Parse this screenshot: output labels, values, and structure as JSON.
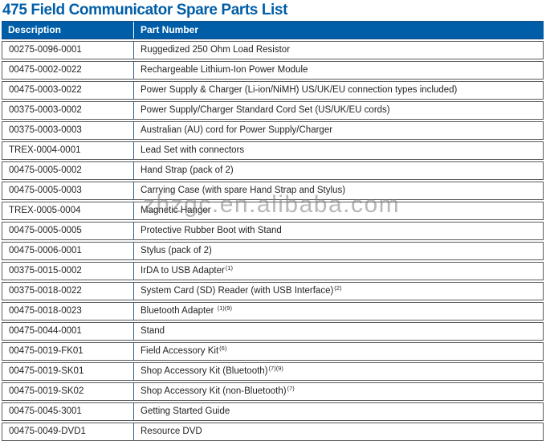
{
  "title": "475 Field Communicator Spare Parts List",
  "watermark": "zhzgc.en.alibaba.com",
  "colors": {
    "header_bg": "#005ea8",
    "title_text": "#005ea8",
    "row_border": "#5a5a5c",
    "column_divider": "#35618f",
    "body_text": "#231f20"
  },
  "table": {
    "columns": [
      "Description",
      "Part Number"
    ],
    "rows": [
      {
        "part": "00275-0096-0001",
        "desc": "Ruggedized 250 Ohm Load Resistor"
      },
      {
        "part": "00475-0002-0022",
        "desc": "Rechargeable Lithium-Ion Power Module"
      },
      {
        "part": "00475-0003-0022",
        "desc": "Power Supply & Charger (Li-ion/NiMH) US/UK/EU connection types included)"
      },
      {
        "part": "00375-0003-0002",
        "desc": "Power Supply/Charger Standard Cord Set (US/UK/EU cords)"
      },
      {
        "part": "00375-0003-0003",
        "desc": "Australian (AU) cord for Power Supply/Charger"
      },
      {
        "part": "TREX-0004-0001",
        "desc": "Lead Set with connectors"
      },
      {
        "part": "00475-0005-0002",
        "desc": "Hand Strap (pack of 2)"
      },
      {
        "part": "00475-0005-0003",
        "desc": "Carrying Case (with spare Hand Strap and Stylus)"
      },
      {
        "part": "TREX-0005-0004",
        "desc": "Magnetic Hanger"
      },
      {
        "part": "00475-0005-0005",
        "desc": "Protective Rubber Boot with Stand"
      },
      {
        "part": "00475-0006-0001",
        "desc": "Stylus (pack of 2)"
      },
      {
        "part": "00375-0015-0002",
        "desc": "IrDA to USB Adapter",
        "sup": "(1)"
      },
      {
        "part": "00375-0018-0022",
        "desc": "System Card (SD) Reader (with USB Interface)",
        "sup": "(2)"
      },
      {
        "part": "00475-0018-0023",
        "desc": "Bluetooth Adapter ",
        "sup": "(1)(9)"
      },
      {
        "part": "00475-0044-0001",
        "desc": "Stand"
      },
      {
        "part": "00475-0019-FK01",
        "desc": "Field Accessory Kit",
        "sup": "(6)"
      },
      {
        "part": "00475-0019-SK01",
        "desc": "Shop Accessory Kit (Bluetooth)",
        "sup": "(7)(9)"
      },
      {
        "part": "00475-0019-SK02",
        "desc": "Shop Accessory Kit (non-Bluetooth)",
        "sup": "(7)"
      },
      {
        "part": "00475-0045-3001",
        "desc": "Getting Started Guide"
      },
      {
        "part": "00475-0049-DVD1",
        "desc": "Resource DVD"
      }
    ]
  }
}
